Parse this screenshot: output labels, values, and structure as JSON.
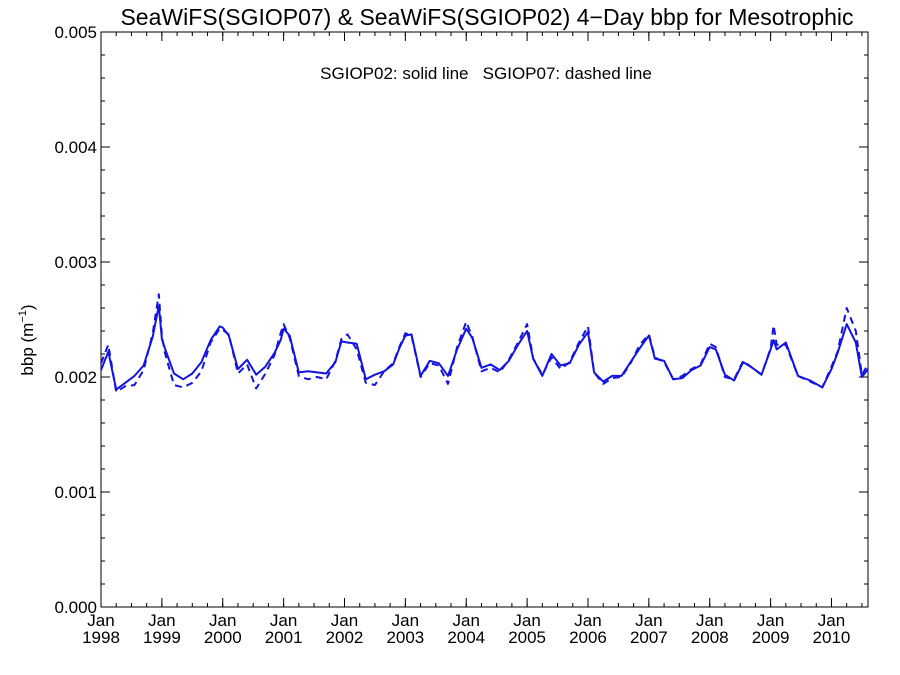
{
  "chart_data": {
    "type": "line",
    "title": "SeaWiFS(SGIOP07) & SeaWiFS(SGIOP02) 4−Day bbp for Mesotrophic",
    "annotation": "SGIOP02: solid line   SGIOP07: dashed line",
    "ylabel": "bbp (m⁻¹)",
    "xlabel": "",
    "xlim": [
      1998.0,
      2010.6
    ],
    "ylim": [
      0,
      0.005
    ],
    "y_ticks": [
      "0.000",
      "0.001",
      "0.002",
      "0.003",
      "0.004",
      "0.005"
    ],
    "x_ticks": [
      {
        "month": "Jan",
        "year": "1998"
      },
      {
        "month": "Jan",
        "year": "1999"
      },
      {
        "month": "Jan",
        "year": "2000"
      },
      {
        "month": "Jan",
        "year": "2001"
      },
      {
        "month": "Jan",
        "year": "2002"
      },
      {
        "month": "Jan",
        "year": "2003"
      },
      {
        "month": "Jan",
        "year": "2004"
      },
      {
        "month": "Jan",
        "year": "2005"
      },
      {
        "month": "Jan",
        "year": "2006"
      },
      {
        "month": "Jan",
        "year": "2007"
      },
      {
        "month": "Jan",
        "year": "2008"
      },
      {
        "month": "Jan",
        "year": "2009"
      },
      {
        "month": "Jan",
        "year": "2010"
      }
    ],
    "grid": false,
    "line_color": "#1414e0",
    "series": [
      {
        "style": "solid",
        "x": [
          1998.0,
          1998.12,
          1998.25,
          1998.4,
          1998.55,
          1998.7,
          1998.85,
          1998.95,
          1999.0,
          1999.05,
          1999.2,
          1999.35,
          1999.5,
          1999.65,
          1999.8,
          1999.95,
          2000.0,
          2000.1,
          2000.25,
          2000.4,
          2000.55,
          2000.7,
          2000.85,
          2000.95,
          2001.0,
          2001.1,
          2001.25,
          2001.4,
          2001.55,
          2001.7,
          2001.85,
          2001.95,
          2002.05,
          2002.2,
          2002.35,
          2002.5,
          2002.65,
          2002.8,
          2002.9,
          2003.0,
          2003.1,
          2003.25,
          2003.4,
          2003.55,
          2003.7,
          2003.85,
          2004.0,
          2004.1,
          2004.25,
          2004.4,
          2004.55,
          2004.7,
          2004.85,
          2005.0,
          2005.1,
          2005.25,
          2005.4,
          2005.55,
          2005.7,
          2005.85,
          2006.0,
          2006.1,
          2006.25,
          2006.4,
          2006.55,
          2006.7,
          2006.85,
          2007.0,
          2007.1,
          2007.25,
          2007.4,
          2007.55,
          2007.7,
          2007.85,
          2008.0,
          2008.1,
          2008.25,
          2008.4,
          2008.55,
          2008.7,
          2008.85,
          2009.0,
          2009.05,
          2009.1,
          2009.25,
          2009.45,
          2009.65,
          2009.85,
          2010.0,
          2010.1,
          2010.25,
          2010.4,
          2010.5,
          2010.6
        ],
        "values": [
          0.00206,
          0.00222,
          0.00189,
          0.00195,
          0.00201,
          0.0021,
          0.00235,
          0.00262,
          0.00233,
          0.00225,
          0.00203,
          0.00198,
          0.00203,
          0.00213,
          0.00232,
          0.00244,
          0.00243,
          0.00236,
          0.00207,
          0.00215,
          0.00202,
          0.00209,
          0.00221,
          0.00232,
          0.00242,
          0.00236,
          0.00204,
          0.00205,
          0.00204,
          0.00203,
          0.00213,
          0.00231,
          0.0023,
          0.00229,
          0.00198,
          0.00202,
          0.00205,
          0.00211,
          0.00225,
          0.00236,
          0.00237,
          0.00201,
          0.00214,
          0.00212,
          0.00201,
          0.00224,
          0.00242,
          0.00234,
          0.00208,
          0.00211,
          0.00206,
          0.00214,
          0.00228,
          0.0024,
          0.00216,
          0.00201,
          0.0022,
          0.0021,
          0.00212,
          0.00228,
          0.00239,
          0.00204,
          0.00196,
          0.00201,
          0.00201,
          0.00213,
          0.00225,
          0.00236,
          0.00216,
          0.00214,
          0.00198,
          0.00199,
          0.00206,
          0.0021,
          0.00226,
          0.00224,
          0.00202,
          0.00197,
          0.00213,
          0.00208,
          0.00202,
          0.00224,
          0.00232,
          0.00224,
          0.0023,
          0.00201,
          0.00197,
          0.00191,
          0.00207,
          0.00221,
          0.00246,
          0.0023,
          0.002,
          0.00207
        ]
      },
      {
        "style": "dashed",
        "x": [
          1998.0,
          1998.12,
          1998.25,
          1998.4,
          1998.55,
          1998.7,
          1998.85,
          1998.95,
          1999.0,
          1999.05,
          1999.2,
          1999.35,
          1999.5,
          1999.65,
          1999.8,
          1999.95,
          2000.0,
          2000.1,
          2000.25,
          2000.4,
          2000.55,
          2000.7,
          2000.85,
          2000.95,
          2001.0,
          2001.1,
          2001.25,
          2001.4,
          2001.55,
          2001.7,
          2001.85,
          2001.95,
          2002.05,
          2002.2,
          2002.35,
          2002.5,
          2002.65,
          2002.8,
          2002.9,
          2003.0,
          2003.1,
          2003.25,
          2003.4,
          2003.55,
          2003.7,
          2003.85,
          2004.0,
          2004.1,
          2004.25,
          2004.4,
          2004.55,
          2004.7,
          2004.85,
          2005.0,
          2005.1,
          2005.25,
          2005.4,
          2005.55,
          2005.7,
          2005.85,
          2006.0,
          2006.1,
          2006.25,
          2006.4,
          2006.55,
          2006.7,
          2006.85,
          2007.0,
          2007.1,
          2007.25,
          2007.4,
          2007.55,
          2007.7,
          2007.85,
          2008.0,
          2008.1,
          2008.25,
          2008.4,
          2008.55,
          2008.7,
          2008.85,
          2009.0,
          2009.05,
          2009.1,
          2009.25,
          2009.45,
          2009.65,
          2009.85,
          2010.0,
          2010.1,
          2010.25,
          2010.4,
          2010.5,
          2010.6
        ],
        "values": [
          0.00212,
          0.00228,
          0.00187,
          0.00192,
          0.00193,
          0.00206,
          0.00238,
          0.00272,
          0.00236,
          0.00221,
          0.00193,
          0.00191,
          0.00195,
          0.00205,
          0.0023,
          0.00242,
          0.00241,
          0.00237,
          0.00203,
          0.00211,
          0.0019,
          0.00203,
          0.00219,
          0.00238,
          0.00246,
          0.00234,
          0.00201,
          0.00198,
          0.002,
          0.00198,
          0.00214,
          0.00233,
          0.00237,
          0.00224,
          0.00195,
          0.00193,
          0.00205,
          0.00212,
          0.00226,
          0.00238,
          0.00236,
          0.002,
          0.00212,
          0.0021,
          0.00194,
          0.00226,
          0.00248,
          0.00235,
          0.00205,
          0.00208,
          0.00204,
          0.00215,
          0.0023,
          0.00246,
          0.00216,
          0.00202,
          0.00217,
          0.00207,
          0.00213,
          0.0023,
          0.00244,
          0.00204,
          0.00194,
          0.00199,
          0.002,
          0.00212,
          0.00228,
          0.00237,
          0.00217,
          0.00213,
          0.00198,
          0.00201,
          0.00207,
          0.00211,
          0.00229,
          0.00226,
          0.002,
          0.00198,
          0.00214,
          0.00208,
          0.00202,
          0.00225,
          0.00245,
          0.00228,
          0.00228,
          0.00201,
          0.00196,
          0.00191,
          0.00209,
          0.00222,
          0.0026,
          0.0024,
          0.00202,
          0.00211
        ]
      }
    ]
  }
}
